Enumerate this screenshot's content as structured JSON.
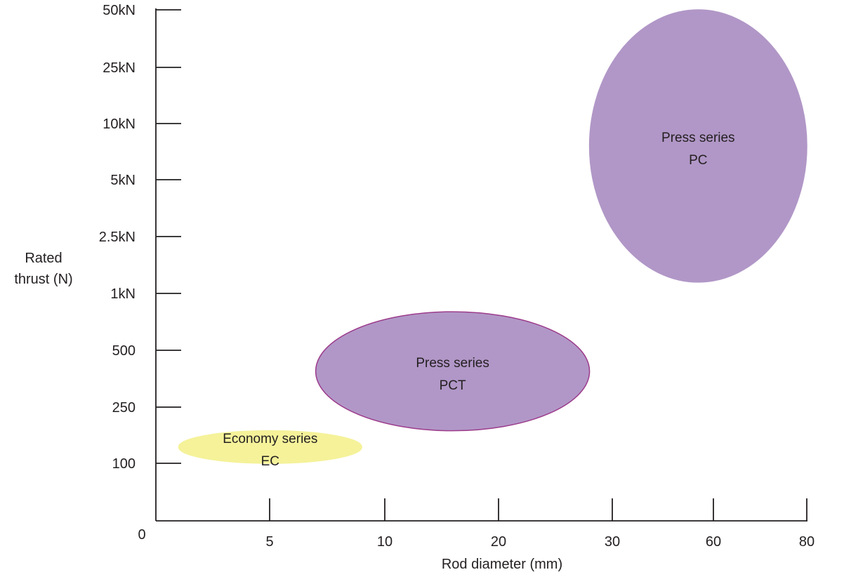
{
  "chart_data": {
    "type": "scatter",
    "title": "",
    "xlabel": "Rod diameter (mm)",
    "ylabel_lines": [
      "Rated",
      "thrust (N)"
    ],
    "x_ticks": [
      "0",
      "5",
      "10",
      "20",
      "30",
      "60",
      "80"
    ],
    "y_ticks": [
      "100",
      "250",
      "500",
      "1kN",
      "2.5kN",
      "5kN",
      "10kN",
      "25kN",
      "50kN"
    ],
    "x_tick_values": [
      0,
      5,
      10,
      20,
      30,
      60,
      80
    ],
    "y_tick_values": [
      100,
      250,
      500,
      1000,
      2500,
      5000,
      10000,
      25000,
      50000
    ],
    "axis_origin_label": "0",
    "scale_note": "non-linear categorical axes",
    "grid": false,
    "regions": [
      {
        "name": "Economy series EC",
        "label_lines": [
          "Economy series",
          "EC"
        ],
        "color": "#f5f29a",
        "edge_color": "#f5f29a",
        "x_range": [
          1,
          9
        ],
        "y_range": [
          60,
          170
        ],
        "center": [
          5,
          100
        ]
      },
      {
        "name": "Press series PCT",
        "label_lines": [
          "Press series",
          "PCT"
        ],
        "color": "#b197c7",
        "edge_color": "#9c3c8c",
        "x_range": [
          7,
          28
        ],
        "y_range": [
          170,
          800
        ],
        "center": [
          16,
          380
        ]
      },
      {
        "name": "Press series PC",
        "label_lines": [
          "Press series",
          "PC"
        ],
        "color": "#b197c7",
        "edge_color": "#b197c7",
        "x_range": [
          28,
          80
        ],
        "y_range": [
          1200,
          50000
        ],
        "center": [
          55,
          7800
        ]
      }
    ]
  }
}
